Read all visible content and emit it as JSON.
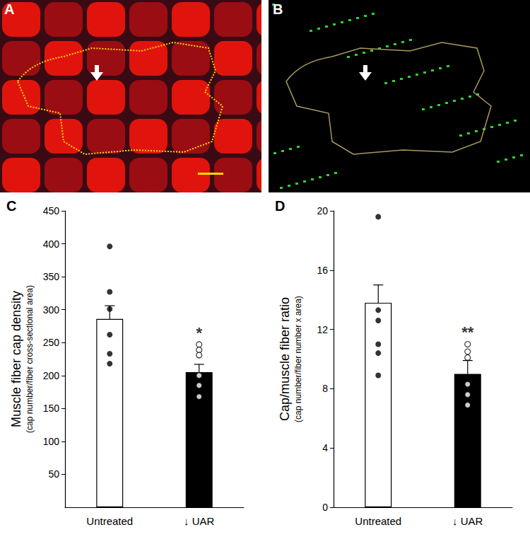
{
  "images": [
    {
      "label": "A"
    },
    {
      "label": "B"
    }
  ],
  "chart_data": [
    {
      "type": "bar",
      "title": "C",
      "ylabel": "Muscle fiber cap density",
      "ylabel_sub": "(cap number/fiber cross-sectional area)",
      "categories": [
        "Untreated",
        "↓ UAR"
      ],
      "values": [
        286,
        205
      ],
      "errors": [
        20,
        12
      ],
      "colors": [
        "#ffffff",
        "#000000"
      ],
      "points": [
        {
          "category": "Untreated",
          "marker": "circle",
          "values": [
            396,
            327,
            301,
            262,
            233,
            218
          ]
        },
        {
          "category": "↓ UAR",
          "marker": "open-circle",
          "values": [
            247,
            239,
            231,
            200,
            185,
            168
          ]
        }
      ],
      "annotations": [
        {
          "category": "↓ UAR",
          "text": "*"
        }
      ],
      "ylim": [
        0,
        450
      ],
      "yticks": [
        50,
        100,
        150,
        200,
        250,
        300,
        350,
        400,
        450
      ],
      "grid": false
    },
    {
      "type": "bar",
      "title": "D",
      "ylabel": "Cap/muscle fiber ratio",
      "ylabel_sub": "(cap number/fiber number x area)",
      "categories": [
        "Untreated",
        "↓ UAR"
      ],
      "values": [
        13.8,
        9.0
      ],
      "errors": [
        1.2,
        0.9
      ],
      "colors": [
        "#ffffff",
        "#000000"
      ],
      "points": [
        {
          "category": "Untreated",
          "marker": "circle",
          "values": [
            19.6,
            13.3,
            12.6,
            11.0,
            10.4,
            8.9
          ]
        },
        {
          "category": "↓ UAR",
          "marker": "open-circle",
          "values": [
            11.0,
            10.5,
            10.1,
            8.3,
            7.6,
            6.9
          ]
        }
      ],
      "annotations": [
        {
          "category": "↓ UAR",
          "text": "**"
        }
      ],
      "ylim": [
        0,
        20
      ],
      "yticks": [
        0,
        4,
        8,
        12,
        16,
        20
      ],
      "grid": false
    }
  ]
}
